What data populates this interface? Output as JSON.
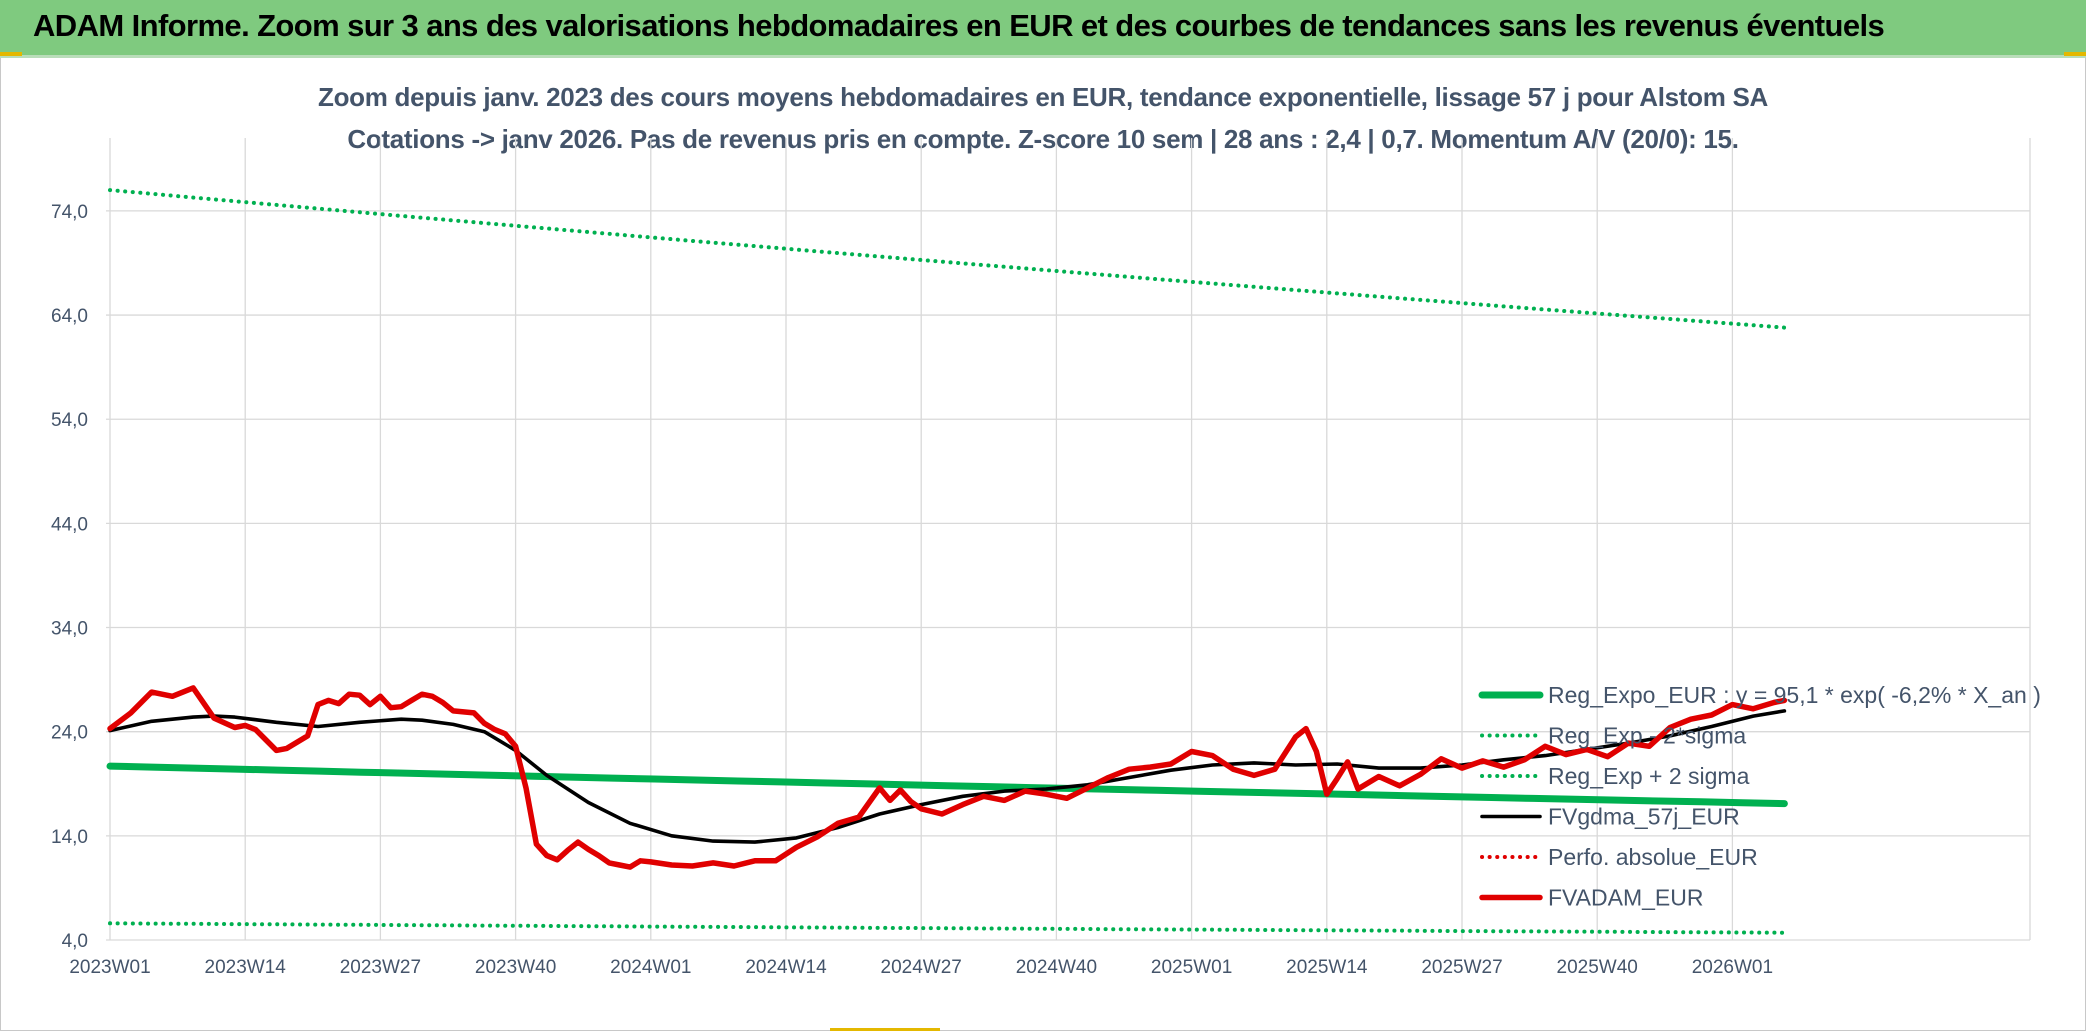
{
  "header": {
    "title": "ADAM Informe. Zoom sur 3 ans des valorisations hebdomadaires en EUR et des courbes de tendances sans les revenus éventuels"
  },
  "colors": {
    "banner": "#7fca7f",
    "reg_expo": "#00b050",
    "gdma": "#000000",
    "adam": "#e00000",
    "axis_text": "#44546a",
    "grid": "#d9d9d9"
  },
  "chart_data": {
    "type": "line",
    "title": "Zoom depuis janv. 2023 des cours moyens hebdomadaires en EUR, tendance exponentielle, lissage 57 j pour Alstom SA",
    "subtitle": "Cotations -> janv 2026. Pas de revenus pris en compte. Z-score 10 sem | 28 ans : 2,4 | 0,7. Momentum A/V (20/0): 15.",
    "ylim": [
      4,
      81
    ],
    "yticks": [
      "4,0",
      "14,0",
      "24,0",
      "34,0",
      "44,0",
      "54,0",
      "64,0",
      "74,0"
    ],
    "ytick_values": [
      4,
      14,
      24,
      34,
      44,
      54,
      64,
      74
    ],
    "xticks": [
      "2023W01",
      "2023W14",
      "2023W27",
      "2023W40",
      "2024W01",
      "2024W14",
      "2024W27",
      "2024W40",
      "2025W01",
      "2025W14",
      "2025W27",
      "2025W40",
      "2026W01"
    ],
    "xtick_index": [
      0,
      13,
      26,
      39,
      52,
      65,
      78,
      91,
      104,
      117,
      130,
      143,
      156
    ],
    "xlim": [
      0,
      161
    ],
    "grid": true,
    "legend_position": "right",
    "series": [
      {
        "name": "Reg_Expo_EUR : y = 95,1 * exp( -6,2% *  X_an )",
        "style": "solid-thick",
        "color": "#00b050",
        "x": [
          0,
          161
        ],
        "y": [
          20.7,
          17.1
        ]
      },
      {
        "name": "Reg_Exp - 2*sigma",
        "style": "dotted",
        "color": "#00b050",
        "x": [
          0,
          161
        ],
        "y": [
          5.6,
          4.7
        ]
      },
      {
        "name": "Reg_Exp + 2 sigma",
        "style": "dotted",
        "color": "#00b050",
        "x": [
          0,
          161
        ],
        "y": [
          76.0,
          62.8
        ]
      },
      {
        "name": "FVgdma_57j_EUR",
        "style": "solid",
        "color": "#000000",
        "x": [
          0,
          4,
          8,
          10,
          12,
          16,
          20,
          24,
          28,
          30,
          33,
          36,
          39,
          42,
          46,
          50,
          54,
          58,
          62,
          66,
          70,
          74,
          78,
          82,
          86,
          90,
          94,
          98,
          102,
          106,
          110,
          114,
          118,
          122,
          126,
          130,
          134,
          138,
          142,
          146,
          150,
          154,
          158,
          161
        ],
        "y": [
          24.1,
          25.0,
          25.4,
          25.5,
          25.4,
          24.9,
          24.5,
          24.9,
          25.2,
          25.1,
          24.7,
          24.0,
          22.2,
          19.8,
          17.2,
          15.2,
          14.0,
          13.5,
          13.4,
          13.8,
          14.8,
          16.1,
          17.0,
          17.8,
          18.3,
          18.5,
          18.9,
          19.6,
          20.3,
          20.8,
          21.0,
          20.8,
          20.9,
          20.5,
          20.5,
          20.8,
          21.3,
          21.7,
          22.3,
          22.9,
          23.6,
          24.5,
          25.5,
          26.0
        ]
      },
      {
        "name": "Perfo. absolue_EUR",
        "style": "dotted",
        "color": "#e00000",
        "x": [],
        "y": []
      },
      {
        "name": "FVADAM_EUR",
        "style": "solid-thick",
        "color": "#e00000",
        "x": [
          0,
          2,
          4,
          6,
          8,
          10,
          12,
          13,
          14,
          15,
          16,
          17,
          18,
          19,
          20,
          21,
          22,
          23,
          24,
          25,
          26,
          27,
          28,
          29,
          30,
          31,
          32,
          33,
          34,
          35,
          36,
          37,
          38,
          39,
          40,
          41,
          42,
          43,
          44,
          45,
          46,
          47,
          48,
          49,
          50,
          51,
          52,
          54,
          56,
          58,
          60,
          62,
          64,
          66,
          68,
          70,
          72,
          74,
          75,
          76,
          77,
          78,
          80,
          82,
          84,
          86,
          88,
          90,
          92,
          94,
          96,
          98,
          100,
          102,
          104,
          106,
          108,
          110,
          112,
          114,
          115,
          116,
          117,
          118,
          119,
          120,
          122,
          124,
          126,
          128,
          130,
          132,
          134,
          136,
          138,
          140,
          142,
          144,
          146,
          148,
          150,
          152,
          154,
          156,
          158,
          160,
          161
        ],
        "y": [
          24.3,
          25.8,
          27.8,
          27.4,
          28.2,
          25.3,
          24.4,
          24.6,
          24.2,
          23.2,
          22.2,
          22.4,
          23.0,
          23.6,
          26.6,
          27.0,
          26.7,
          27.6,
          27.5,
          26.6,
          27.4,
          26.3,
          26.4,
          27.0,
          27.6,
          27.4,
          26.8,
          26.0,
          25.9,
          25.8,
          24.8,
          24.2,
          23.8,
          22.6,
          18.6,
          13.2,
          12.1,
          11.7,
          12.6,
          13.4,
          12.7,
          12.1,
          11.4,
          11.2,
          11.0,
          11.6,
          11.5,
          11.2,
          11.1,
          11.4,
          11.1,
          11.6,
          11.6,
          12.9,
          13.9,
          15.2,
          15.8,
          18.6,
          17.4,
          18.4,
          17.3,
          16.6,
          16.1,
          17.0,
          17.8,
          17.4,
          18.3,
          18.0,
          17.6,
          18.6,
          19.6,
          20.4,
          20.6,
          20.9,
          22.1,
          21.7,
          20.4,
          19.8,
          20.4,
          23.5,
          24.3,
          22.1,
          18.0,
          19.5,
          21.1,
          18.5,
          19.7,
          18.8,
          19.9,
          21.4,
          20.5,
          21.2,
          20.6,
          21.3,
          22.6,
          21.8,
          22.3,
          21.6,
          22.9,
          22.6,
          24.4,
          25.2,
          25.6,
          26.6,
          26.2,
          26.8,
          27.0
        ]
      }
    ]
  }
}
